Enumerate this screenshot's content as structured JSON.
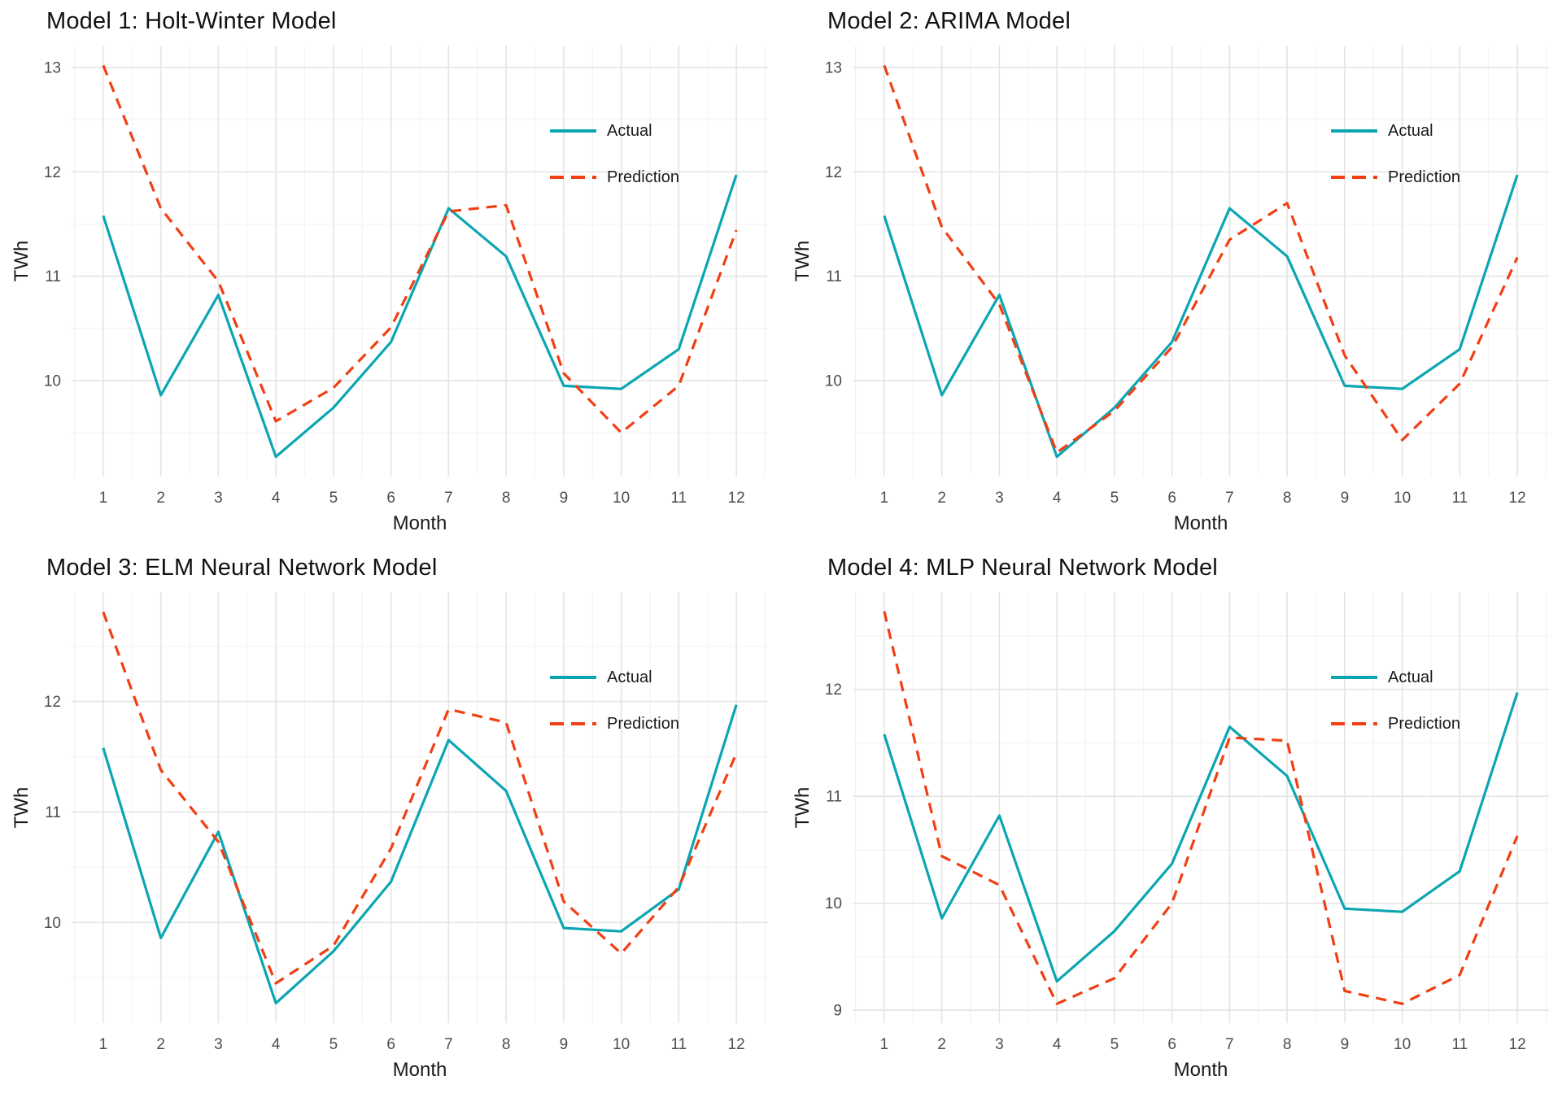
{
  "style": {
    "background": "#FFFFFF",
    "actual_color": "#0BA6B2",
    "prediction_color": "#F23E13",
    "grid_major": "#E4E4E4",
    "grid_minor": "#F2F2F2",
    "tick_label_color": "#4D4D4D",
    "text_color": "#1A1A1A"
  },
  "legend": {
    "actual_label": "Actual",
    "prediction_label": "Prediction"
  },
  "chart_data": [
    {
      "type": "line",
      "title": "Model 1: Holt-Winter Model",
      "xlabel": "Month",
      "ylabel": "TWh",
      "x": [
        1,
        2,
        3,
        4,
        5,
        6,
        7,
        8,
        9,
        10,
        11,
        12
      ],
      "x_ticks": [
        1,
        2,
        3,
        4,
        5,
        6,
        7,
        8,
        9,
        10,
        11,
        12
      ],
      "y_ticks": [
        10,
        11,
        12,
        13
      ],
      "xlim": [
        0.45,
        12.55
      ],
      "ylim": [
        9.08,
        13.21
      ],
      "grid": true,
      "legend_position": "inside-right-upper",
      "series": [
        {
          "name": "Actual",
          "style": "solid",
          "color": "#0BA6B2",
          "values": [
            11.58,
            9.86,
            10.82,
            9.27,
            9.74,
            10.37,
            11.65,
            11.19,
            9.95,
            9.92,
            10.3,
            11.97
          ]
        },
        {
          "name": "Prediction",
          "style": "dashed",
          "color": "#F23E13",
          "values": [
            13.02,
            11.65,
            10.95,
            9.61,
            9.93,
            10.51,
            11.62,
            11.68,
            10.07,
            9.5,
            9.95,
            11.44
          ]
        }
      ]
    },
    {
      "type": "line",
      "title": "Model 2: ARIMA Model",
      "xlabel": "Month",
      "ylabel": "TWh",
      "x": [
        1,
        2,
        3,
        4,
        5,
        6,
        7,
        8,
        9,
        10,
        11,
        12
      ],
      "x_ticks": [
        1,
        2,
        3,
        4,
        5,
        6,
        7,
        8,
        9,
        10,
        11,
        12
      ],
      "y_ticks": [
        10,
        11,
        12,
        13
      ],
      "xlim": [
        0.45,
        12.55
      ],
      "ylim": [
        9.08,
        13.21
      ],
      "grid": true,
      "legend_position": "inside-right-upper",
      "series": [
        {
          "name": "Actual",
          "style": "solid",
          "color": "#0BA6B2",
          "values": [
            11.58,
            9.86,
            10.82,
            9.27,
            9.74,
            10.37,
            11.65,
            11.19,
            9.95,
            9.92,
            10.3,
            11.97
          ]
        },
        {
          "name": "Prediction",
          "style": "dashed",
          "color": "#F23E13",
          "values": [
            13.02,
            11.47,
            10.73,
            9.31,
            9.71,
            10.32,
            11.35,
            11.7,
            10.24,
            9.43,
            9.97,
            11.18
          ]
        }
      ]
    },
    {
      "type": "line",
      "title": "Model 3: ELM Neural Network Model",
      "xlabel": "Month",
      "ylabel": "TWh",
      "x": [
        1,
        2,
        3,
        4,
        5,
        6,
        7,
        8,
        9,
        10,
        11,
        12
      ],
      "x_ticks": [
        1,
        2,
        3,
        4,
        5,
        6,
        7,
        8,
        9,
        10,
        11,
        12
      ],
      "y_ticks": [
        10,
        11,
        12
      ],
      "xlim": [
        0.45,
        12.55
      ],
      "ylim": [
        9.09,
        12.99
      ],
      "grid": true,
      "legend_position": "inside-right-upper",
      "series": [
        {
          "name": "Actual",
          "style": "solid",
          "color": "#0BA6B2",
          "values": [
            11.58,
            9.86,
            10.82,
            9.27,
            9.74,
            10.37,
            11.65,
            11.19,
            9.95,
            9.92,
            10.3,
            11.97
          ]
        },
        {
          "name": "Prediction",
          "style": "dashed",
          "color": "#F23E13",
          "values": [
            12.81,
            11.38,
            10.73,
            9.45,
            9.79,
            10.67,
            11.93,
            11.81,
            10.19,
            9.72,
            10.32,
            11.53
          ]
        }
      ]
    },
    {
      "type": "line",
      "title": "Model 4: MLP Neural Network Model",
      "xlabel": "Month",
      "ylabel": "TWh",
      "x": [
        1,
        2,
        3,
        4,
        5,
        6,
        7,
        8,
        9,
        10,
        11,
        12
      ],
      "x_ticks": [
        1,
        2,
        3,
        4,
        5,
        6,
        7,
        8,
        9,
        10,
        11,
        12
      ],
      "y_ticks": [
        9,
        10,
        11,
        12
      ],
      "xlim": [
        0.45,
        12.55
      ],
      "ylim": [
        8.88,
        12.91
      ],
      "grid": true,
      "legend_position": "inside-right-upper",
      "series": [
        {
          "name": "Actual",
          "style": "solid",
          "color": "#0BA6B2",
          "values": [
            11.58,
            9.86,
            10.82,
            9.27,
            9.74,
            10.37,
            11.65,
            11.19,
            9.95,
            9.92,
            10.3,
            11.97
          ]
        },
        {
          "name": "Prediction",
          "style": "dashed",
          "color": "#F23E13",
          "values": [
            12.73,
            10.44,
            10.17,
            9.06,
            9.3,
            10.0,
            11.55,
            11.52,
            9.18,
            9.06,
            9.33,
            10.63
          ]
        }
      ]
    }
  ]
}
